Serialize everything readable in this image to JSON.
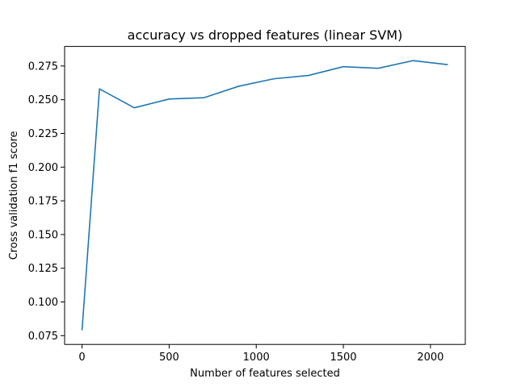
{
  "chart_data": {
    "type": "line",
    "title": "accuracy vs dropped features (linear SVM)",
    "xlabel": "Number of features selected",
    "ylabel": "Cross validation f1 score",
    "xlim": [
      -100,
      2200
    ],
    "ylim": [
      0.0685,
      0.2895
    ],
    "x_ticks": [
      0,
      500,
      1000,
      1500,
      2000
    ],
    "x_tick_labels": [
      "0",
      "500",
      "1000",
      "1500",
      "2000"
    ],
    "y_ticks": [
      0.075,
      0.1,
      0.125,
      0.15,
      0.175,
      0.2,
      0.225,
      0.25,
      0.275
    ],
    "y_tick_labels": [
      "0.075",
      "0.100",
      "0.125",
      "0.150",
      "0.175",
      "0.200",
      "0.225",
      "0.250",
      "0.275"
    ],
    "grid": false,
    "series": [
      {
        "color": "#1f77b4",
        "x": [
          0,
          100,
          300,
          500,
          700,
          900,
          1100,
          1300,
          1500,
          1700,
          1900,
          2100
        ],
        "y": [
          0.079,
          0.258,
          0.244,
          0.2505,
          0.2515,
          0.26,
          0.2655,
          0.268,
          0.2745,
          0.2733,
          0.279,
          0.276
        ]
      }
    ]
  }
}
